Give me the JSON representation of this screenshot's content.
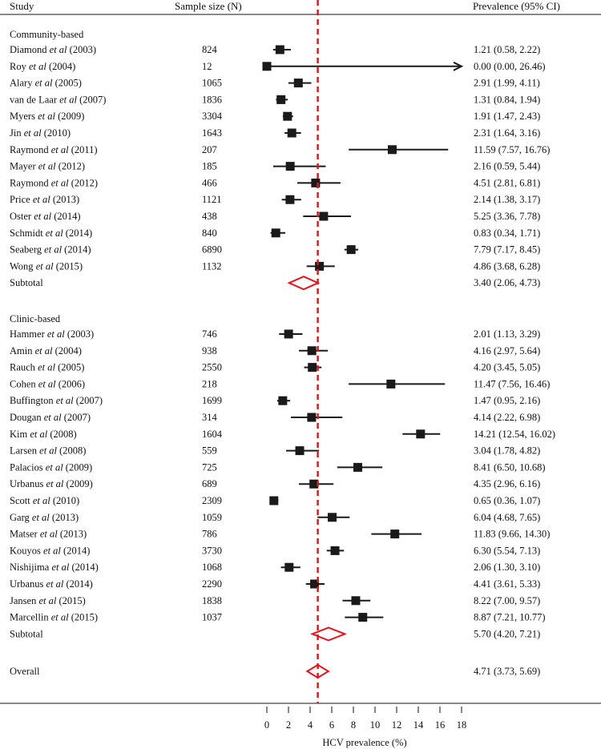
{
  "header": {
    "study_label": "Study",
    "n_label": "Sample size (N)",
    "prev_label": "Prevalence (95% CI)"
  },
  "chart_data": {
    "type": "forest",
    "xlabel": "HCV prevalence (%)",
    "xlim": [
      0,
      18
    ],
    "xticks": [
      0,
      2,
      4,
      6,
      8,
      10,
      12,
      14,
      16,
      18
    ],
    "reference_line": 4.71,
    "groups": [
      {
        "name": "Community-based",
        "studies": [
          {
            "author": "Diamond",
            "year": "(2003)",
            "n": "824",
            "est": 1.21,
            "lo": 0.58,
            "hi": 2.22,
            "ci": "1.21 (0.58, 2.22)"
          },
          {
            "author": "Roy",
            "year": "(2004)",
            "n": "12",
            "est": 0.0,
            "lo": 0.0,
            "hi": 26.46,
            "ci": "0.00 (0.00, 26.46)"
          },
          {
            "author": "Alary",
            "year": "(2005)",
            "n": "1065",
            "est": 2.91,
            "lo": 1.99,
            "hi": 4.11,
            "ci": "2.91 (1.99, 4.11)"
          },
          {
            "author": "van de Laar",
            "year": "(2007)",
            "n": "1836",
            "est": 1.31,
            "lo": 0.84,
            "hi": 1.94,
            "ci": "1.31 (0.84, 1.94)"
          },
          {
            "author": "Myers",
            "year": "(2009)",
            "n": "3304",
            "est": 1.91,
            "lo": 1.47,
            "hi": 2.43,
            "ci": "1.91 (1.47, 2.43)"
          },
          {
            "author": "Jin",
            "year": "(2010)",
            "n": "1643",
            "est": 2.31,
            "lo": 1.64,
            "hi": 3.16,
            "ci": "2.31 (1.64, 3.16)"
          },
          {
            "author": "Raymond",
            "year": "(2011)",
            "n": "207",
            "est": 11.59,
            "lo": 7.57,
            "hi": 16.76,
            "ci": "11.59 (7.57, 16.76)"
          },
          {
            "author": "Mayer",
            "year": "(2012)",
            "n": "185",
            "est": 2.16,
            "lo": 0.59,
            "hi": 5.44,
            "ci": "2.16 (0.59, 5.44)"
          },
          {
            "author": "Raymond",
            "year": "(2012)",
            "n": "466",
            "est": 4.51,
            "lo": 2.81,
            "hi": 6.81,
            "ci": "4.51 (2.81, 6.81)"
          },
          {
            "author": "Price",
            "year": "(2013)",
            "n": "1121",
            "est": 2.14,
            "lo": 1.38,
            "hi": 3.17,
            "ci": "2.14 (1.38, 3.17)"
          },
          {
            "author": "Oster",
            "year": "(2014)",
            "n": "438",
            "est": 5.25,
            "lo": 3.36,
            "hi": 7.78,
            "ci": "5.25 (3.36, 7.78)"
          },
          {
            "author": "Schmidt",
            "year": "(2014)",
            "n": "840",
            "est": 0.83,
            "lo": 0.34,
            "hi": 1.71,
            "ci": "0.83 (0.34, 1.71)"
          },
          {
            "author": "Seaberg",
            "year": "(2014)",
            "n": "6890",
            "est": 7.79,
            "lo": 7.17,
            "hi": 8.45,
            "ci": "7.79 (7.17, 8.45)"
          },
          {
            "author": "Wong",
            "year": "(2015)",
            "n": "1132",
            "est": 4.86,
            "lo": 3.68,
            "hi": 6.28,
            "ci": "4.86 (3.68, 6.28)"
          }
        ],
        "subtotal": {
          "label": "Subtotal",
          "est": 3.4,
          "lo": 2.06,
          "hi": 4.73,
          "ci": "3.40 (2.06, 4.73)"
        }
      },
      {
        "name": "Clinic-based",
        "studies": [
          {
            "author": "Hammer",
            "year": "(2003)",
            "n": "746",
            "est": 2.01,
            "lo": 1.13,
            "hi": 3.29,
            "ci": "2.01 (1.13, 3.29)"
          },
          {
            "author": "Amin",
            "year": "(2004)",
            "n": "938",
            "est": 4.16,
            "lo": 2.97,
            "hi": 5.64,
            "ci": "4.16 (2.97, 5.64)"
          },
          {
            "author": "Rauch",
            "year": "(2005)",
            "n": "2550",
            "est": 4.2,
            "lo": 3.45,
            "hi": 5.05,
            "ci": "4.20 (3.45, 5.05)"
          },
          {
            "author": "Cohen",
            "year": "(2006)",
            "n": "218",
            "est": 11.47,
            "lo": 7.56,
            "hi": 16.46,
            "ci": "11.47 (7.56, 16.46)"
          },
          {
            "author": "Buffington",
            "year": "(2007)",
            "n": "1699",
            "est": 1.47,
            "lo": 0.95,
            "hi": 2.16,
            "ci": "1.47 (0.95, 2.16)"
          },
          {
            "author": "Dougan",
            "year": "(2007)",
            "n": "314",
            "est": 4.14,
            "lo": 2.22,
            "hi": 6.98,
            "ci": "4.14 (2.22, 6.98)"
          },
          {
            "author": "Kim",
            "year": "(2008)",
            "n": "1604",
            "est": 14.21,
            "lo": 12.54,
            "hi": 16.02,
            "ci": "14.21 (12.54, 16.02)"
          },
          {
            "author": "Larsen",
            "year": "(2008)",
            "n": "559",
            "est": 3.04,
            "lo": 1.78,
            "hi": 4.82,
            "ci": "3.04 (1.78, 4.82)"
          },
          {
            "author": "Palacios",
            "year": "(2009)",
            "n": "725",
            "est": 8.41,
            "lo": 6.5,
            "hi": 10.68,
            "ci": "8.41 (6.50, 10.68)"
          },
          {
            "author": "Urbanus",
            "year": "(2009)",
            "n": "689",
            "est": 4.35,
            "lo": 2.96,
            "hi": 6.16,
            "ci": "4.35 (2.96, 6.16)"
          },
          {
            "author": "Scott",
            "year": "(2010)",
            "n": "2309",
            "est": 0.65,
            "lo": 0.36,
            "hi": 1.07,
            "ci": "0.65 (0.36, 1.07)"
          },
          {
            "author": "Garg",
            "year": "(2013)",
            "n": "1059",
            "est": 6.04,
            "lo": 4.68,
            "hi": 7.65,
            "ci": "6.04 (4.68, 7.65)"
          },
          {
            "author": "Matser",
            "year": "(2013)",
            "n": "786",
            "est": 11.83,
            "lo": 9.66,
            "hi": 14.3,
            "ci": "11.83 (9.66, 14.30)"
          },
          {
            "author": "Kouyos",
            "year": "(2014)",
            "n": "3730",
            "est": 6.3,
            "lo": 5.54,
            "hi": 7.13,
            "ci": "6.30 (5.54, 7.13)"
          },
          {
            "author": "Nishijima",
            "year": "(2014)",
            "n": "1068",
            "est": 2.06,
            "lo": 1.3,
            "hi": 3.1,
            "ci": "2.06 (1.30, 3.10)"
          },
          {
            "author": "Urbanus",
            "year": "(2014)",
            "n": "2290",
            "est": 4.41,
            "lo": 3.61,
            "hi": 5.33,
            "ci": "4.41 (3.61, 5.33)"
          },
          {
            "author": "Jansen",
            "year": "(2015)",
            "n": "1838",
            "est": 8.22,
            "lo": 7.0,
            "hi": 9.57,
            "ci": "8.22 (7.00, 9.57)"
          },
          {
            "author": "Marcellin",
            "year": "(2015)",
            "n": "1037",
            "est": 8.87,
            "lo": 7.21,
            "hi": 10.77,
            "ci": "8.87 (7.21, 10.77)"
          }
        ],
        "subtotal": {
          "label": "Subtotal",
          "est": 5.7,
          "lo": 4.2,
          "hi": 7.21,
          "ci": "5.70 (4.20, 7.21)"
        }
      }
    ],
    "overall": {
      "label": "Overall",
      "est": 4.71,
      "lo": 3.73,
      "hi": 5.69,
      "ci": "4.71 (3.73, 5.69)"
    },
    "et_al_text": "et al",
    "colors": {
      "marker": "#1a1a1a",
      "diamond": "#e8141c",
      "refline": "#e8141c",
      "axis": "#111111"
    }
  }
}
